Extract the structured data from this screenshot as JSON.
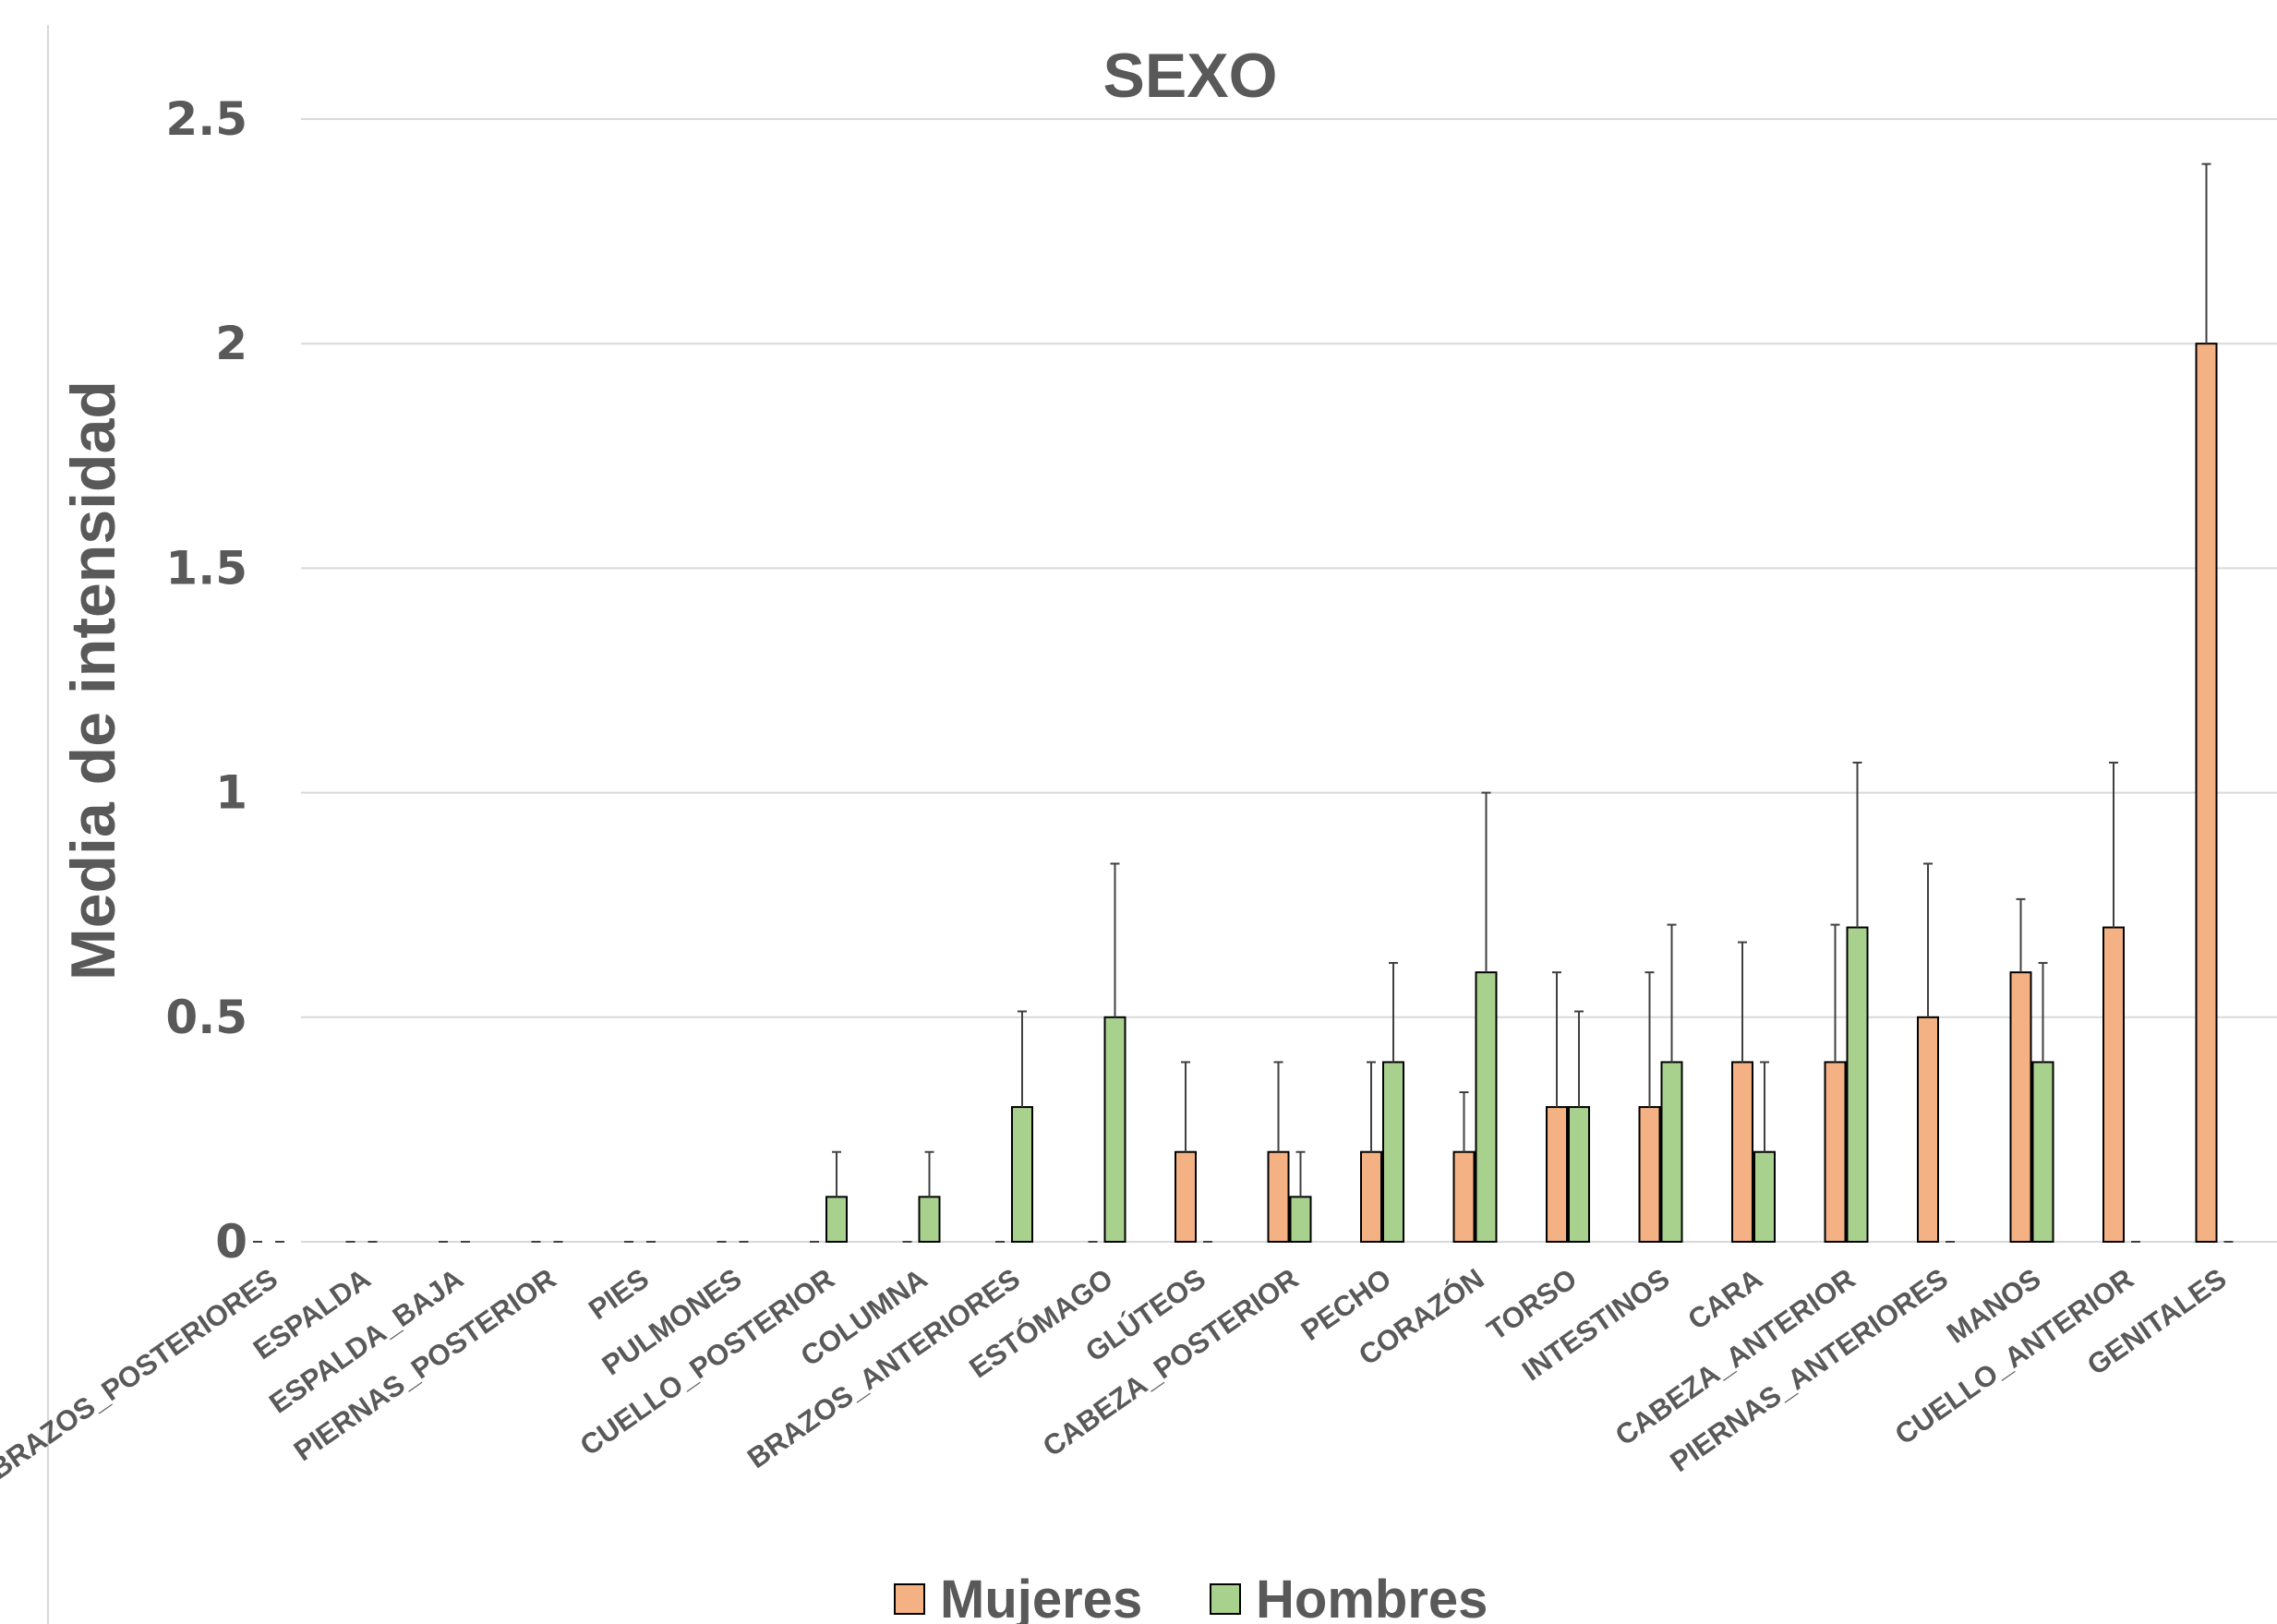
{
  "chart_data": {
    "type": "bar",
    "title": "SEXO",
    "xlabel": "",
    "ylabel": "Media de intensidad",
    "ylim": [
      0,
      2.5
    ],
    "yticks": [
      "0",
      "0.5",
      "1",
      "1.5",
      "2",
      "2.5"
    ],
    "grid": true,
    "legend_position": "bottom",
    "error_bars": true,
    "categories": [
      "BRAZOS_POSTERIORES",
      "ESPALDA",
      "ESPALDA_BAJA",
      "PIERNAS_POSTERIOR",
      "PIES",
      "PULMONES",
      "CUELLO_POSTERIOR",
      "COLUMNA",
      "BRAZOS_ANTERIORES",
      "ESTÓMAGO",
      "GLÚTEOS",
      "CABEZA_POSTERIOR",
      "PECHO",
      "CORAZÓN",
      "TORSO",
      "INTESTINOS",
      "CARA",
      "CABEZA_ANTERIOR",
      "PIERNAS_ANTERIORES",
      "MANOS",
      "CUELLO_ANTERIOR",
      "GENITALES"
    ],
    "series": [
      {
        "name": "Mujeres",
        "color": "#F4B183",
        "values": [
          0,
          0,
          0,
          0,
          0,
          0,
          0,
          0,
          0,
          0,
          0.2,
          0.2,
          0.2,
          0.2,
          0.3,
          0.3,
          0.4,
          0.4,
          0.5,
          0.6,
          0.7,
          2.0
        ],
        "error": [
          0,
          0,
          0,
          0,
          0,
          0,
          0,
          0,
          0,
          0,
          0.2,
          0.2,
          0.2,
          0.133,
          0.3,
          0.3,
          0.267,
          0.306,
          0.342,
          0.163,
          0.367,
          0.4
        ]
      },
      {
        "name": "Hombres",
        "color": "#A9D18E",
        "values": [
          0,
          0,
          0,
          0,
          0,
          0,
          0.1,
          0.1,
          0.3,
          0.5,
          0,
          0.1,
          0.4,
          0.6,
          0.3,
          0.4,
          0.2,
          0.7,
          0,
          0.4,
          0,
          0
        ],
        "error": [
          0,
          0,
          0,
          0,
          0,
          0,
          0.1,
          0.1,
          0.213,
          0.342,
          0,
          0.1,
          0.221,
          0.4,
          0.213,
          0.306,
          0.2,
          0.367,
          0,
          0.221,
          0,
          0
        ]
      }
    ]
  },
  "colors": {
    "text": "#595959",
    "grid": "#D9D9D9",
    "bar_outline": "#000000",
    "error_bar": "#404040",
    "left_border": "#D9D9D9"
  }
}
